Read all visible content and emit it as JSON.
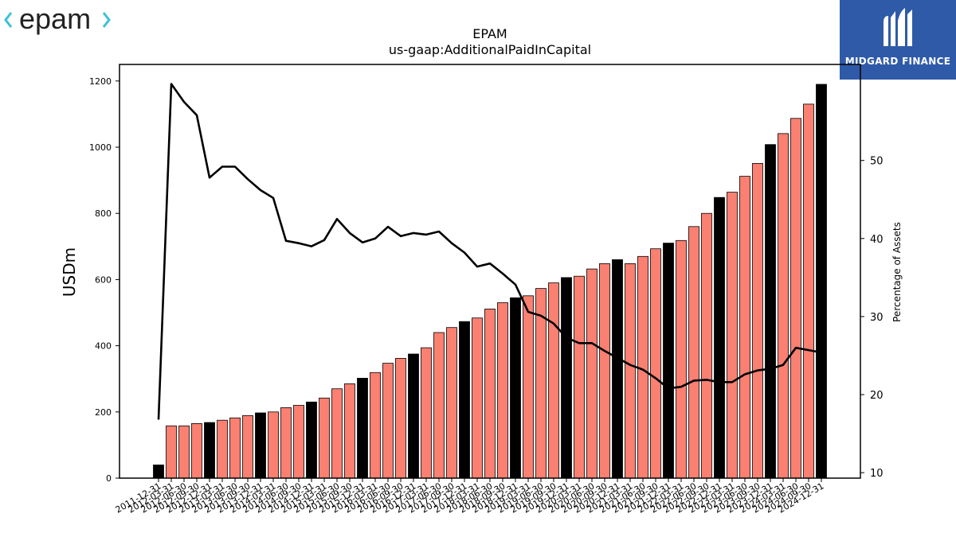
{
  "brand_left": "epam",
  "brand_right": "MIDGARD FINANCE",
  "chart_data": {
    "type": "bar",
    "title": "EPAM",
    "subtitle": "us-gaap:AdditionalPaidInCapital",
    "ylabel": "USDm",
    "y2label": "Percentage of Assets",
    "ylim": [
      0,
      1250
    ],
    "y2lim": [
      9.3,
      62.3
    ],
    "yticks": [
      0,
      200,
      400,
      600,
      800,
      1000,
      1200
    ],
    "y2ticks": [
      10,
      20,
      30,
      40,
      50
    ],
    "colors": {
      "bar": "#fa8072",
      "bar_highlight": "#000000",
      "line": "#000000"
    },
    "categories": [
      "2011-12-31",
      "2012-03-31",
      "2012-06-30",
      "2012-09-30",
      "2012-12-31",
      "2013-03-31",
      "2013-06-30",
      "2013-09-30",
      "2013-12-31",
      "2014-03-31",
      "2014-06-30",
      "2014-09-30",
      "2014-12-31",
      "2015-03-31",
      "2015-06-30",
      "2015-09-30",
      "2015-12-31",
      "2016-03-31",
      "2016-06-30",
      "2016-09-30",
      "2016-12-31",
      "2017-03-31",
      "2017-06-30",
      "2017-09-30",
      "2017-12-31",
      "2018-03-31",
      "2018-06-30",
      "2018-09-30",
      "2018-12-31",
      "2019-03-31",
      "2019-06-30",
      "2019-09-30",
      "2019-12-31",
      "2020-03-31",
      "2020-06-30",
      "2020-09-30",
      "2020-12-31",
      "2021-03-31",
      "2021-06-30",
      "2021-09-30",
      "2021-12-31",
      "2022-03-31",
      "2022-06-30",
      "2022-09-30",
      "2022-12-31",
      "2023-03-31",
      "2023-06-30",
      "2023-09-30",
      "2023-12-31",
      "2024-03-31",
      "2024-06-30",
      "2024-09-30",
      "2024-12-31"
    ],
    "visible_tick_labels": [
      "2011-12-31",
      "2012-03-31",
      "2012-06-30",
      "2012-09-30",
      "2012-12-31",
      "2013-03-31",
      "2013-06-30",
      "2013-09-30",
      "2013-12-31",
      "2014-03-31",
      "2014-06-30",
      "2014-09-30",
      "2014-12-31",
      "2015-03-31",
      "2015-06-30",
      "2015-09-30",
      "2015-12-31",
      "2016-03-31",
      "2016-06-30",
      "2016-09-30",
      "2016-12-31",
      "2017-03-31",
      "2017-06-30",
      "2017-09-30",
      "2017-12-31",
      "2018-03-31",
      "2018-06-30",
      "2018-09-30",
      "2018-12-31",
      "2019-03-31",
      "2019-06-30",
      "2019-09-30",
      "2019-12-31",
      "2020-03-31",
      "2020-06-30",
      "2020-09-30",
      "2020-12-31",
      "2021-03-31",
      "2021-06-30",
      "2021-09-30",
      "2021-12-31",
      "2022-03-31",
      "2022-06-30",
      "2022-09-30",
      "2022-12-31",
      "2023-03-31",
      "2023-06-30",
      "2023-09-30",
      "2023-12-31",
      "2024-03-31",
      "2024-06-30",
      "2024-09-30",
      "2024-12-31"
    ],
    "highlight_indices": [
      0,
      4,
      8,
      12,
      16,
      20,
      24,
      28,
      32,
      36,
      40,
      44,
      48,
      52
    ],
    "series": [
      {
        "type": "bar",
        "axis": "left",
        "values": [
          40,
          158,
          158,
          165,
          168,
          175,
          182,
          189,
          197,
          200,
          213,
          220,
          230,
          242,
          270,
          285,
          302,
          319,
          347,
          362,
          375,
          394,
          440,
          455,
          473,
          484,
          511,
          530,
          545,
          551,
          573,
          590,
          606,
          610,
          632,
          648,
          660,
          648,
          670,
          693,
          710,
          718,
          760,
          800,
          848,
          864,
          912,
          951,
          1008,
          1041,
          1087,
          1130,
          1190
        ]
      },
      {
        "type": "line",
        "axis": "right",
        "values": [
          16.8,
          59.8,
          57.5,
          55.8,
          47.8,
          49.2,
          49.2,
          47.6,
          46.2,
          45.2,
          39.7,
          39.4,
          39.0,
          39.8,
          42.5,
          40.7,
          39.5,
          40.0,
          41.5,
          40.3,
          40.7,
          40.5,
          40.9,
          39.4,
          38.2,
          36.4,
          36.8,
          35.5,
          34.1,
          30.6,
          30.1,
          29.1,
          27.3,
          26.6,
          26.6,
          25.6,
          24.7,
          23.8,
          23.2,
          22.1,
          20.8,
          21.0,
          21.8,
          21.9,
          21.6,
          21.6,
          22.6,
          23.1,
          23.3,
          23.8,
          26.0,
          25.7,
          25.4
        ]
      }
    ]
  }
}
